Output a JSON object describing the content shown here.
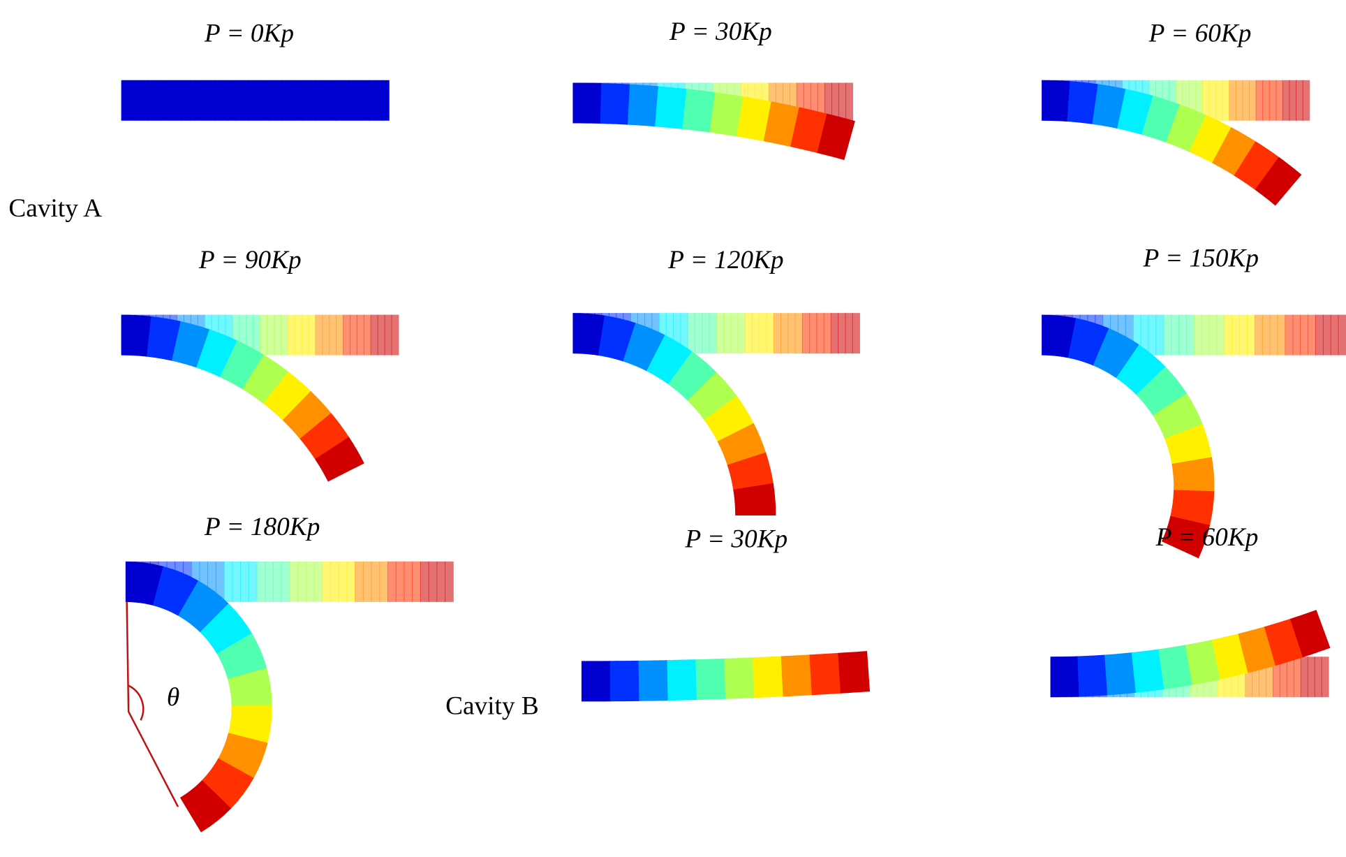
{
  "panels": [
    {
      "label": "P = 0Kp"
    },
    {
      "label": "P = 30Kp"
    },
    {
      "label": "P = 60Kp"
    },
    {
      "label": "P = 90Kp"
    },
    {
      "label": "P = 120Kp"
    },
    {
      "label": "P = 150Kp"
    },
    {
      "label": "P = 180Kp"
    },
    {
      "label": "P = 30Kp"
    },
    {
      "label": "P = 60Kp"
    }
  ],
  "cavity_labels": [
    "Cavity A",
    "Cavity B"
  ],
  "angle_symbol": "θ"
}
